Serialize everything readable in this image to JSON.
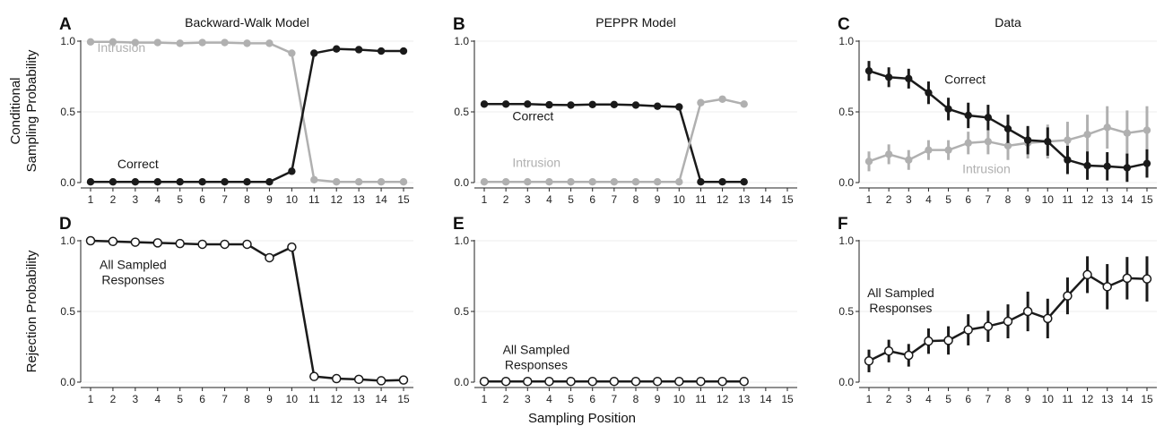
{
  "figure": {
    "y_label_top_line1": "Conditional",
    "y_label_top_line2": "Sampling Probability",
    "y_label_bottom": "Rejection Probability",
    "x_label": "Sampling Position"
  },
  "colors": {
    "dark": "#1a1a1a",
    "gray": "#b0b0b0",
    "open_fill": "#ffffff"
  },
  "chart_data": [
    {
      "panel": "A",
      "type": "line",
      "title": "Backward-Walk Model",
      "ylim": [
        0,
        1
      ],
      "yticks": [
        "0.0",
        "0.5",
        "1.0"
      ],
      "x_ticks": [
        1,
        2,
        3,
        4,
        5,
        6,
        7,
        8,
        9,
        10,
        11,
        12,
        13,
        14,
        15
      ],
      "series": [
        {
          "name": "Intrusion",
          "color": "gray",
          "marker": "filled",
          "x": [
            1,
            2,
            3,
            4,
            5,
            6,
            7,
            8,
            9,
            10,
            11,
            12,
            13,
            14,
            15
          ],
          "y": [
            0.995,
            0.995,
            0.99,
            0.99,
            0.985,
            0.99,
            0.99,
            0.985,
            0.985,
            0.915,
            0.02,
            0.005,
            0.005,
            0.005,
            0.005
          ]
        },
        {
          "name": "Correct",
          "color": "dark",
          "marker": "filled",
          "x": [
            1,
            2,
            3,
            4,
            5,
            6,
            7,
            8,
            9,
            10,
            11,
            12,
            13,
            14,
            15
          ],
          "y": [
            0.005,
            0.005,
            0.005,
            0.005,
            0.005,
            0.005,
            0.005,
            0.005,
            0.005,
            0.08,
            0.915,
            0.945,
            0.94,
            0.93,
            0.93
          ]
        }
      ],
      "annotations": [
        {
          "text": "Intrusion",
          "color": "gray",
          "x": 1.3,
          "y": 0.925
        },
        {
          "text": "Correct",
          "color": "dark",
          "x": 2.2,
          "y": 0.1
        }
      ]
    },
    {
      "panel": "B",
      "type": "line",
      "title": "PEPPR Model",
      "ylim": [
        0,
        1
      ],
      "yticks": [
        "0.0",
        "0.5",
        "1.0"
      ],
      "x_ticks": [
        1,
        2,
        3,
        4,
        5,
        6,
        7,
        8,
        9,
        10,
        11,
        12,
        13,
        14,
        15
      ],
      "series": [
        {
          "name": "Correct",
          "color": "dark",
          "marker": "filled",
          "x": [
            1,
            2,
            3,
            4,
            5,
            6,
            7,
            8,
            9,
            10,
            11,
            12,
            13
          ],
          "y": [
            0.555,
            0.555,
            0.555,
            0.55,
            0.548,
            0.552,
            0.552,
            0.548,
            0.54,
            0.535,
            0.005,
            0.005,
            0.005
          ]
        },
        {
          "name": "Intrusion",
          "color": "gray",
          "marker": "filled",
          "x": [
            1,
            2,
            3,
            4,
            5,
            6,
            7,
            8,
            9,
            10,
            11,
            12,
            13
          ],
          "y": [
            0.005,
            0.005,
            0.005,
            0.005,
            0.005,
            0.005,
            0.005,
            0.005,
            0.005,
            0.005,
            0.565,
            0.59,
            0.555
          ]
        }
      ],
      "annotations": [
        {
          "text": "Correct",
          "color": "dark",
          "x": 2.3,
          "y": 0.44
        },
        {
          "text": "Intrusion",
          "color": "gray",
          "x": 2.3,
          "y": 0.11
        }
      ]
    },
    {
      "panel": "C",
      "type": "line",
      "title": "Data",
      "ylim": [
        0,
        1
      ],
      "yticks": [
        "0.0",
        "0.5",
        "1.0"
      ],
      "x_ticks": [
        1,
        2,
        3,
        4,
        5,
        6,
        7,
        8,
        9,
        10,
        11,
        12,
        13,
        14,
        15
      ],
      "series": [
        {
          "name": "Intrusion",
          "color": "gray",
          "marker": "filled",
          "x": [
            1,
            2,
            3,
            4,
            5,
            6,
            7,
            8,
            9,
            10,
            11,
            12,
            13,
            14,
            15
          ],
          "y": [
            0.15,
            0.2,
            0.16,
            0.23,
            0.23,
            0.28,
            0.29,
            0.26,
            0.28,
            0.29,
            0.3,
            0.34,
            0.39,
            0.35,
            0.37
          ],
          "err": [
            0.07,
            0.07,
            0.07,
            0.07,
            0.07,
            0.08,
            0.09,
            0.1,
            0.11,
            0.12,
            0.13,
            0.14,
            0.15,
            0.16,
            0.17
          ]
        },
        {
          "name": "Correct",
          "color": "dark",
          "marker": "filled",
          "x": [
            1,
            2,
            3,
            4,
            5,
            6,
            7,
            8,
            9,
            10,
            11,
            12,
            13,
            14,
            15
          ],
          "y": [
            0.79,
            0.745,
            0.735,
            0.635,
            0.52,
            0.475,
            0.46,
            0.38,
            0.3,
            0.29,
            0.16,
            0.12,
            0.115,
            0.105,
            0.135
          ],
          "err": [
            0.07,
            0.07,
            0.07,
            0.08,
            0.08,
            0.09,
            0.09,
            0.1,
            0.1,
            0.1,
            0.1,
            0.1,
            0.1,
            0.1,
            0.1
          ]
        }
      ],
      "annotations": [
        {
          "text": "Correct",
          "color": "dark",
          "x": 4.8,
          "y": 0.7
        },
        {
          "text": "Intrusion",
          "color": "gray",
          "x": 5.7,
          "y": 0.065
        }
      ]
    },
    {
      "panel": "D",
      "type": "line",
      "title": "",
      "ylim": [
        0,
        1
      ],
      "yticks": [
        "0.0",
        "0.5",
        "1.0"
      ],
      "x_ticks": [
        1,
        2,
        3,
        4,
        5,
        6,
        7,
        8,
        9,
        10,
        11,
        12,
        13,
        14,
        15
      ],
      "series": [
        {
          "name": "All Sampled Responses",
          "color": "dark",
          "marker": "open",
          "x": [
            1,
            2,
            3,
            4,
            5,
            6,
            7,
            8,
            9,
            10,
            11,
            12,
            13,
            14,
            15
          ],
          "y": [
            1.0,
            0.995,
            0.99,
            0.985,
            0.98,
            0.975,
            0.975,
            0.975,
            0.88,
            0.955,
            0.04,
            0.025,
            0.02,
            0.01,
            0.015
          ]
        }
      ],
      "annotations": [
        {
          "lines": [
            "All Sampled",
            "Responses"
          ],
          "color": "dark",
          "x": 2.9,
          "y": 0.8
        }
      ]
    },
    {
      "panel": "E",
      "type": "line",
      "title": "",
      "ylim": [
        0,
        1
      ],
      "yticks": [
        "0.0",
        "0.5",
        "1.0"
      ],
      "x_ticks": [
        1,
        2,
        3,
        4,
        5,
        6,
        7,
        8,
        9,
        10,
        11,
        12,
        13,
        14,
        15
      ],
      "series": [
        {
          "name": "All Sampled Responses",
          "color": "dark",
          "marker": "open",
          "x": [
            1,
            2,
            3,
            4,
            5,
            6,
            7,
            8,
            9,
            10,
            11,
            12,
            13
          ],
          "y": [
            0.005,
            0.005,
            0.005,
            0.005,
            0.005,
            0.005,
            0.005,
            0.005,
            0.005,
            0.005,
            0.005,
            0.005,
            0.005
          ]
        }
      ],
      "annotations": [
        {
          "lines": [
            "All Sampled",
            "Responses"
          ],
          "color": "dark",
          "x": 3.4,
          "y": 0.2
        }
      ]
    },
    {
      "panel": "F",
      "type": "line",
      "title": "",
      "ylim": [
        0,
        1
      ],
      "yticks": [
        "0.0",
        "0.5",
        "1.0"
      ],
      "x_ticks": [
        1,
        2,
        3,
        4,
        5,
        6,
        7,
        8,
        9,
        10,
        11,
        12,
        13,
        14,
        15
      ],
      "series": [
        {
          "name": "All Sampled Responses",
          "color": "dark",
          "marker": "open",
          "x": [
            1,
            2,
            3,
            4,
            5,
            6,
            7,
            8,
            9,
            10,
            11,
            12,
            13,
            14,
            15
          ],
          "y": [
            0.15,
            0.22,
            0.19,
            0.29,
            0.295,
            0.37,
            0.395,
            0.43,
            0.5,
            0.45,
            0.61,
            0.76,
            0.675,
            0.735,
            0.73
          ],
          "err": [
            0.08,
            0.08,
            0.08,
            0.09,
            0.1,
            0.11,
            0.11,
            0.12,
            0.14,
            0.14,
            0.13,
            0.13,
            0.16,
            0.15,
            0.16
          ]
        }
      ],
      "annotations": [
        {
          "lines": [
            "All Sampled",
            "Responses"
          ],
          "color": "dark",
          "x": 2.6,
          "y": 0.6
        }
      ]
    }
  ]
}
